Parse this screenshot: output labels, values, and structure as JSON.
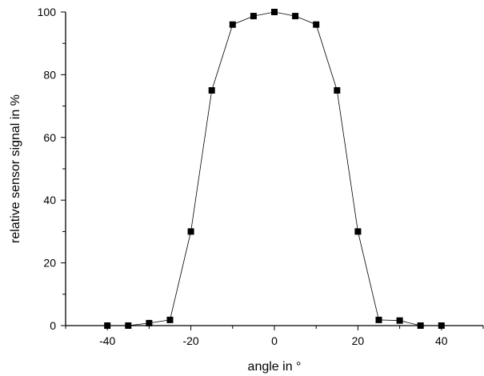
{
  "chart_data": {
    "type": "scatter",
    "title": "",
    "xlabel": "angle in °",
    "ylabel": "relative sensor signal in %",
    "xlim": [
      -50,
      50
    ],
    "ylim": [
      0,
      100
    ],
    "x_ticks": [
      -40,
      -20,
      0,
      20,
      40
    ],
    "y_ticks": [
      0,
      20,
      40,
      60,
      80,
      100
    ],
    "x_tick_labels": [
      "-40",
      "-20",
      "0",
      "20",
      "40"
    ],
    "y_tick_labels": [
      "0",
      "20",
      "40",
      "60",
      "80",
      "100"
    ],
    "grid": false,
    "marker": "square",
    "connected_line": true,
    "series": [
      {
        "x": [
          -40,
          -35,
          -30,
          -25,
          -20,
          -15,
          -10,
          -5,
          0,
          5,
          10,
          15,
          20,
          25,
          30,
          35,
          40
        ],
        "y": [
          0,
          0,
          0.8,
          1.8,
          30,
          75,
          96,
          98.7,
          100,
          98.7,
          96,
          75,
          30,
          1.8,
          1.6,
          0,
          0
        ]
      }
    ],
    "colors": {
      "marker": "#000000",
      "line": "#000000",
      "axis": "#000000"
    }
  }
}
